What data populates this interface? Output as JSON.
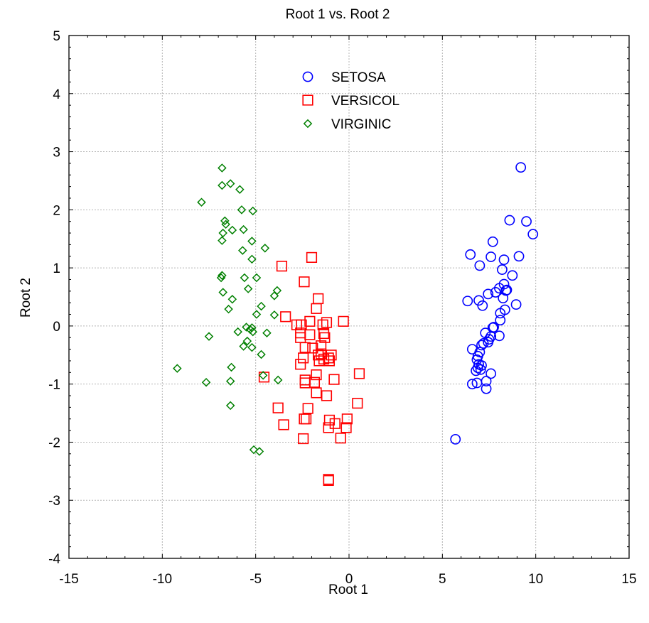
{
  "chart_data": {
    "type": "scatter",
    "title": "Root 1 vs. Root 2",
    "xlabel": "Root 1",
    "ylabel": "Root 2",
    "xlim": [
      -15,
      15
    ],
    "ylim": [
      -4,
      5
    ],
    "xticks": [
      -15,
      -10,
      -5,
      0,
      5,
      10,
      15
    ],
    "yticks": [
      -4,
      -3,
      -2,
      -1,
      0,
      1,
      2,
      3,
      4,
      5
    ],
    "grid": true,
    "legend_position": "top-center",
    "series": [
      {
        "name": "SETOSA",
        "marker": "circle",
        "color": "#0000ff",
        "points": [
          [
            9.2,
            2.73
          ],
          [
            8.6,
            1.82
          ],
          [
            9.5,
            1.8
          ],
          [
            9.85,
            1.58
          ],
          [
            7.7,
            1.45
          ],
          [
            6.5,
            1.23
          ],
          [
            7.6,
            1.19
          ],
          [
            9.1,
            1.2
          ],
          [
            8.3,
            1.14
          ],
          [
            7.0,
            1.04
          ],
          [
            8.2,
            0.97
          ],
          [
            8.75,
            0.87
          ],
          [
            8.3,
            0.72
          ],
          [
            8.05,
            0.65
          ],
          [
            8.45,
            0.62
          ],
          [
            8.4,
            0.61
          ],
          [
            7.85,
            0.58
          ],
          [
            7.45,
            0.55
          ],
          [
            8.25,
            0.48
          ],
          [
            6.35,
            0.43
          ],
          [
            6.95,
            0.44
          ],
          [
            8.95,
            0.37
          ],
          [
            7.15,
            0.35
          ],
          [
            8.35,
            0.28
          ],
          [
            8.1,
            0.22
          ],
          [
            8.1,
            0.1
          ],
          [
            7.75,
            -0.02
          ],
          [
            7.7,
            -0.03
          ],
          [
            7.3,
            -0.12
          ],
          [
            7.6,
            -0.18
          ],
          [
            8.05,
            -0.17
          ],
          [
            7.5,
            -0.23
          ],
          [
            7.45,
            -0.28
          ],
          [
            7.2,
            -0.3
          ],
          [
            7.1,
            -0.33
          ],
          [
            6.6,
            -0.4
          ],
          [
            7.0,
            -0.45
          ],
          [
            6.9,
            -0.52
          ],
          [
            6.85,
            -0.58
          ],
          [
            6.95,
            -0.66
          ],
          [
            7.1,
            -0.68
          ],
          [
            6.9,
            -0.72
          ],
          [
            7.05,
            -0.75
          ],
          [
            6.8,
            -0.77
          ],
          [
            7.6,
            -0.82
          ],
          [
            7.35,
            -0.95
          ],
          [
            6.85,
            -0.98
          ],
          [
            6.6,
            -1.0
          ],
          [
            7.35,
            -1.08
          ],
          [
            5.7,
            -1.95
          ]
        ]
      },
      {
        "name": "VERSICOL",
        "marker": "square",
        "color": "#ff0000",
        "points": [
          [
            -3.6,
            1.03
          ],
          [
            -2.0,
            1.18
          ],
          [
            -2.4,
            0.76
          ],
          [
            -1.65,
            0.47
          ],
          [
            -1.75,
            0.3
          ],
          [
            -3.4,
            0.16
          ],
          [
            -2.1,
            0.08
          ],
          [
            -2.8,
            0.02
          ],
          [
            -2.55,
            0.02
          ],
          [
            -1.4,
            0.02
          ],
          [
            -1.2,
            0.06
          ],
          [
            -0.3,
            0.08
          ],
          [
            -2.6,
            -0.12
          ],
          [
            -1.35,
            -0.13
          ],
          [
            -2.1,
            -0.15
          ],
          [
            -2.6,
            -0.2
          ],
          [
            -1.3,
            -0.2
          ],
          [
            -1.5,
            -0.34
          ],
          [
            -2.35,
            -0.37
          ],
          [
            -1.95,
            -0.38
          ],
          [
            -1.5,
            -0.48
          ],
          [
            -1.65,
            -0.5
          ],
          [
            -0.95,
            -0.5
          ],
          [
            -2.45,
            -0.55
          ],
          [
            -1.1,
            -0.55
          ],
          [
            -1.35,
            -0.57
          ],
          [
            -1.05,
            -0.6
          ],
          [
            -1.6,
            -0.6
          ],
          [
            -2.6,
            -0.66
          ],
          [
            -1.75,
            -0.84
          ],
          [
            0.55,
            -0.82
          ],
          [
            -0.8,
            -0.92
          ],
          [
            -2.35,
            -0.93
          ],
          [
            -1.85,
            -0.97
          ],
          [
            -4.55,
            -0.88
          ],
          [
            -2.35,
            -0.98
          ],
          [
            -1.75,
            -1.15
          ],
          [
            -1.2,
            -1.2
          ],
          [
            0.45,
            -1.33
          ],
          [
            -3.8,
            -1.41
          ],
          [
            -2.2,
            -1.42
          ],
          [
            -2.3,
            -1.6
          ],
          [
            -2.4,
            -1.6
          ],
          [
            -0.1,
            -1.6
          ],
          [
            -1.05,
            -1.62
          ],
          [
            -0.75,
            -1.68
          ],
          [
            -0.15,
            -1.75
          ],
          [
            -1.1,
            -1.75
          ],
          [
            -3.5,
            -1.7
          ],
          [
            -2.45,
            -1.94
          ],
          [
            -0.45,
            -1.93
          ],
          [
            -1.1,
            -2.64
          ],
          [
            -1.1,
            -2.66
          ]
        ]
      },
      {
        "name": "VIRGINIC",
        "marker": "diamond",
        "color": "#008000",
        "points": [
          [
            -6.8,
            2.72
          ],
          [
            -6.35,
            2.45
          ],
          [
            -6.8,
            2.42
          ],
          [
            -5.85,
            2.35
          ],
          [
            -7.9,
            2.13
          ],
          [
            -5.75,
            2.0
          ],
          [
            -5.15,
            1.98
          ],
          [
            -6.65,
            1.81
          ],
          [
            -6.6,
            1.75
          ],
          [
            -6.75,
            1.6
          ],
          [
            -6.25,
            1.65
          ],
          [
            -5.65,
            1.66
          ],
          [
            -6.8,
            1.47
          ],
          [
            -5.2,
            1.46
          ],
          [
            -4.5,
            1.34
          ],
          [
            -5.7,
            1.3
          ],
          [
            -5.2,
            1.15
          ],
          [
            -6.8,
            0.87
          ],
          [
            -6.85,
            0.83
          ],
          [
            -5.6,
            0.83
          ],
          [
            -4.95,
            0.83
          ],
          [
            -5.4,
            0.64
          ],
          [
            -3.85,
            0.61
          ],
          [
            -6.75,
            0.58
          ],
          [
            -4.0,
            0.52
          ],
          [
            -6.25,
            0.46
          ],
          [
            -4.7,
            0.34
          ],
          [
            -6.45,
            0.29
          ],
          [
            -4.95,
            0.2
          ],
          [
            -4.0,
            0.19
          ],
          [
            -5.5,
            -0.02
          ],
          [
            -5.2,
            -0.03
          ],
          [
            -5.3,
            -0.06
          ],
          [
            -5.95,
            -0.1
          ],
          [
            -5.15,
            -0.1
          ],
          [
            -4.4,
            -0.12
          ],
          [
            -7.5,
            -0.18
          ],
          [
            -5.45,
            -0.26
          ],
          [
            -5.65,
            -0.35
          ],
          [
            -5.2,
            -0.37
          ],
          [
            -4.7,
            -0.49
          ],
          [
            -6.3,
            -0.71
          ],
          [
            -9.2,
            -0.73
          ],
          [
            -4.6,
            -0.85
          ],
          [
            -3.8,
            -0.93
          ],
          [
            -6.35,
            -0.95
          ],
          [
            -7.65,
            -0.97
          ],
          [
            -6.35,
            -1.37
          ],
          [
            -5.1,
            -2.13
          ],
          [
            -4.8,
            -2.16
          ]
        ]
      }
    ]
  }
}
